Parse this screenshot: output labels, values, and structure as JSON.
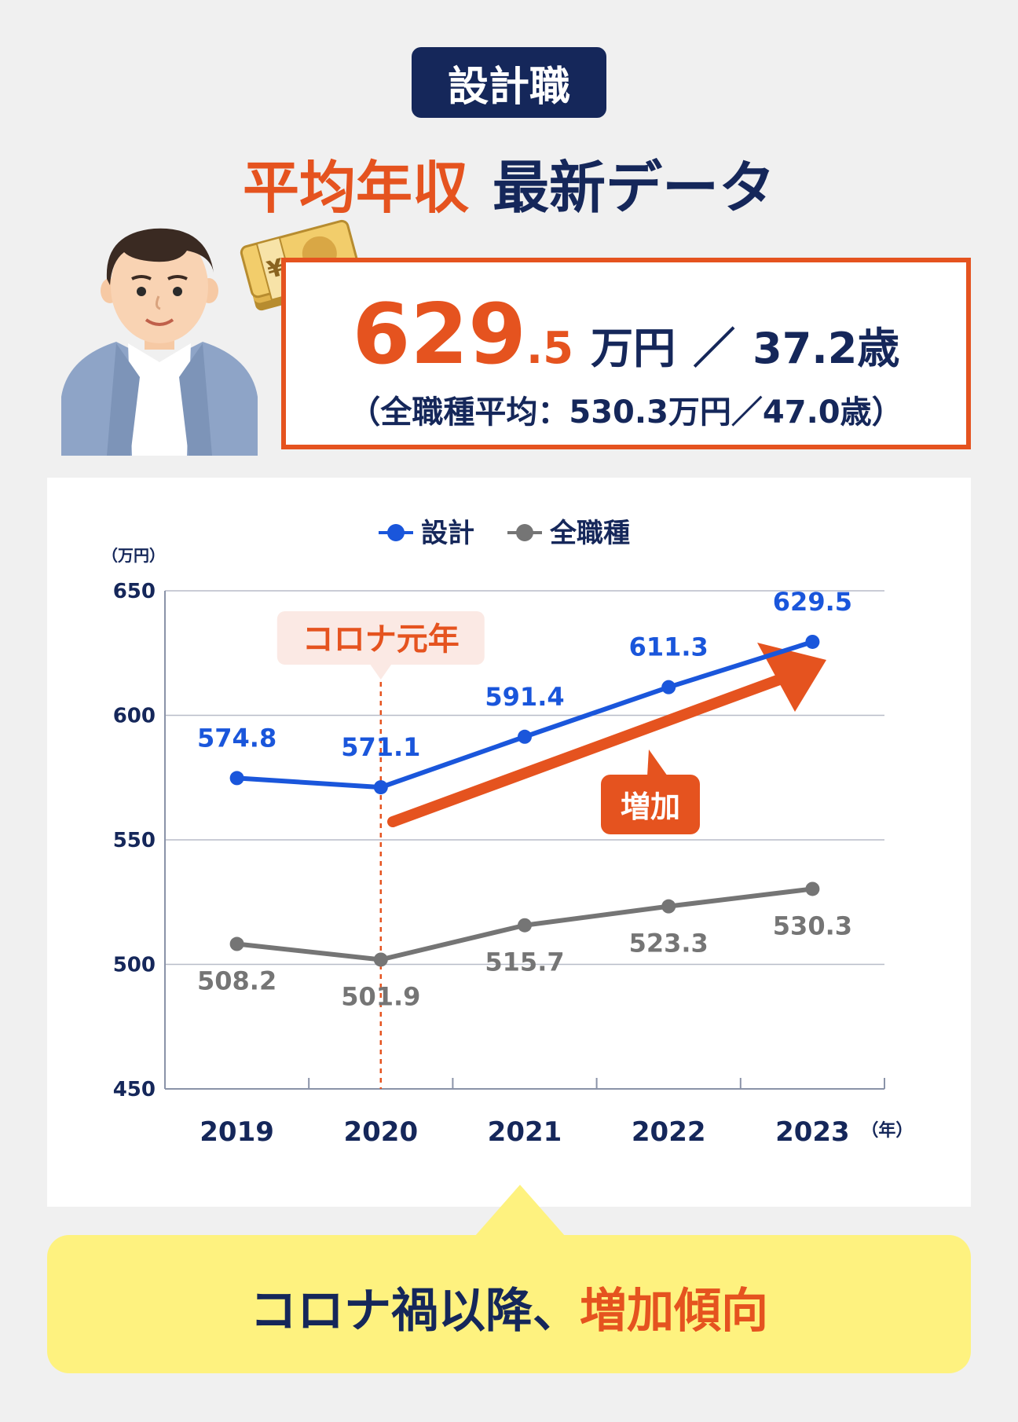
{
  "badge": "設計職",
  "headline": {
    "part1": "平均年収",
    "part2": "最新データ"
  },
  "stats": {
    "salary_int": "629",
    "salary_dec": ".5",
    "salary_unit": "万円",
    "separator": "／",
    "age": "37.2歳",
    "avg_note": "（全職種平均：530.3万円／47.0歳）"
  },
  "icons": {
    "person": "businessman-avatar-icon",
    "money": "yen-banknote-bundle-icon",
    "money_symbol": "¥"
  },
  "chart_data": {
    "type": "line",
    "categories": [
      "2019",
      "2020",
      "2021",
      "2022",
      "2023"
    ],
    "series": [
      {
        "name": "設計",
        "values": [
          574.8,
          571.1,
          591.4,
          611.3,
          629.5
        ],
        "labels": [
          "574.8",
          "571.1",
          "591.4",
          "611.3",
          "629.5"
        ],
        "color": "#1a56db"
      },
      {
        "name": "全職種",
        "values": [
          508.2,
          501.9,
          515.7,
          523.3,
          530.3
        ],
        "labels": [
          "508.2",
          "501.9",
          "515.7",
          "523.3",
          "530.3"
        ],
        "color": "#757575"
      }
    ],
    "ylim": [
      450,
      650
    ],
    "yticks": [
      "650",
      "600",
      "550",
      "500",
      "450"
    ],
    "y_unit": "（万円）",
    "x_unit": "（年）",
    "grid": true,
    "legend": "top-center",
    "annotations": {
      "covid_label": "コロナ元年",
      "covid_year": "2020",
      "trend_label": "増加"
    },
    "colors": {
      "accent": "#e5531f",
      "navy": "#15275a"
    }
  },
  "callout": {
    "text_main": "コロナ禍以降、",
    "text_accent": "増加傾向"
  }
}
